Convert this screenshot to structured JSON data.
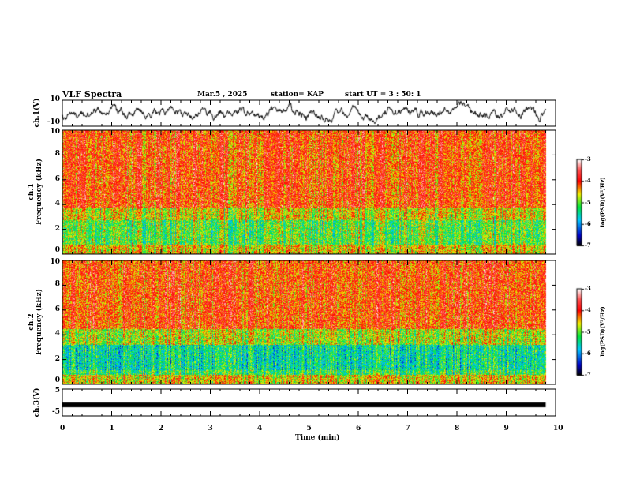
{
  "header": {
    "title": "VLF Spectra",
    "date": "Mar.5  , 2025",
    "station": "station= KAP",
    "start_ut": "start  UT =   3 : 50: 1"
  },
  "chart_data": [
    {
      "type": "line",
      "name": "ch1-waveform",
      "ylabel": "ch.1(V)",
      "ylim": [
        -10,
        10
      ],
      "yticks": [
        "10",
        "-10"
      ],
      "xlim": [
        0,
        10
      ],
      "data_end_min": 9.8
    },
    {
      "type": "heatmap",
      "name": "ch1-spectrogram",
      "ylabel": "ch.1\nFrequency (kHz)",
      "ylim": [
        0,
        10
      ],
      "yticks": [
        "10",
        "8",
        "6",
        "4",
        "2",
        "0"
      ],
      "colorbar": {
        "label": "log(PSD)(V²/Hz)",
        "range": [
          -7,
          -3
        ],
        "ticks": [
          "-3",
          "-4",
          "-5",
          "-6",
          "-7"
        ]
      }
    },
    {
      "type": "heatmap",
      "name": "ch2-spectrogram",
      "ylabel": "ch.2\nFrequency (kHz)",
      "ylim": [
        0,
        10
      ],
      "yticks": [
        "10",
        "8",
        "6",
        "4",
        "2",
        "0"
      ],
      "colorbar": {
        "label": "log(PSD)(V²/Hz)",
        "range": [
          -7,
          -3
        ],
        "ticks": [
          "-3",
          "-4",
          "-5",
          "-6",
          "-7"
        ]
      }
    },
    {
      "type": "line",
      "name": "ch3-waveform",
      "ylabel": "ch.3(V)",
      "ylim": [
        -5,
        5
      ],
      "yticks": [
        "5",
        "-5"
      ],
      "level_v": -0.9
    }
  ],
  "xaxis": {
    "label": "Time  (min)",
    "ticks": [
      "0",
      "1",
      "2",
      "3",
      "4",
      "5",
      "6",
      "7",
      "8",
      "9",
      "10"
    ]
  }
}
